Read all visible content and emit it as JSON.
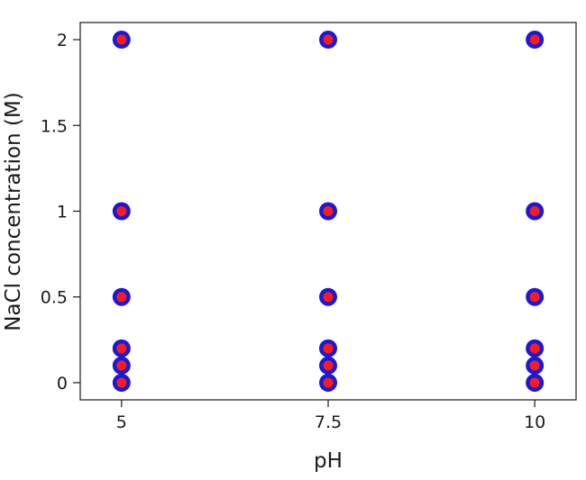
{
  "chart_data": {
    "type": "scatter",
    "title": "",
    "xlabel": "pH",
    "ylabel": "NaCl concentration (M)",
    "xlim": [
      4.5,
      10.5
    ],
    "ylim": [
      -0.1,
      2.1
    ],
    "x_ticks": [
      {
        "value": 5,
        "label": "5"
      },
      {
        "value": 7.5,
        "label": "7.5"
      },
      {
        "value": 10,
        "label": "10"
      }
    ],
    "y_ticks": [
      {
        "value": 0,
        "label": "0"
      },
      {
        "value": 0.5,
        "label": "0.5"
      },
      {
        "value": 1,
        "label": "1"
      },
      {
        "value": 1.5,
        "label": "1.5"
      },
      {
        "value": 2,
        "label": "2"
      }
    ],
    "grid": false,
    "legend": "none",
    "marker_fill": "#ff1a1a",
    "marker_edge": "#1a1ad6",
    "points": [
      {
        "x": 5,
        "y": 0
      },
      {
        "x": 5,
        "y": 0.1
      },
      {
        "x": 5,
        "y": 0.2
      },
      {
        "x": 5,
        "y": 0.5
      },
      {
        "x": 5,
        "y": 1
      },
      {
        "x": 5,
        "y": 2
      },
      {
        "x": 7.5,
        "y": 0
      },
      {
        "x": 7.5,
        "y": 0.1
      },
      {
        "x": 7.5,
        "y": 0.2
      },
      {
        "x": 7.5,
        "y": 0.5
      },
      {
        "x": 7.5,
        "y": 1
      },
      {
        "x": 7.5,
        "y": 2
      },
      {
        "x": 10,
        "y": 0
      },
      {
        "x": 10,
        "y": 0.1
      },
      {
        "x": 10,
        "y": 0.2
      },
      {
        "x": 10,
        "y": 0.5
      },
      {
        "x": 10,
        "y": 1
      },
      {
        "x": 10,
        "y": 2
      }
    ]
  }
}
